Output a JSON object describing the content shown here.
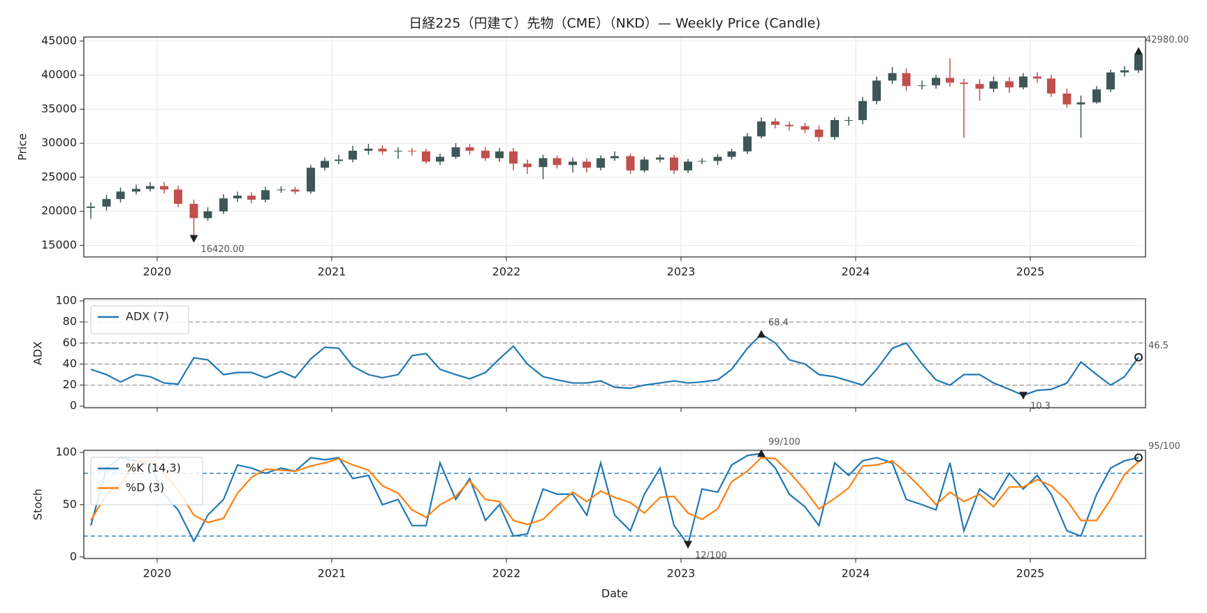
{
  "chart_data": [
    {
      "type": "candlestick",
      "title": "日経225（円建て）先物（CME）（NKD）— Weekly Price (Candle)",
      "ylabel": "Price",
      "x": [
        2019.62,
        2019.71,
        2019.79,
        2019.88,
        2019.96,
        2020.04,
        2020.12,
        2020.21,
        2020.29,
        2020.38,
        2020.46,
        2020.54,
        2020.62,
        2020.71,
        2020.79,
        2020.88,
        2020.96,
        2021.04,
        2021.12,
        2021.21,
        2021.29,
        2021.38,
        2021.46,
        2021.54,
        2021.62,
        2021.71,
        2021.79,
        2021.88,
        2021.96,
        2022.04,
        2022.12,
        2022.21,
        2022.29,
        2022.38,
        2022.46,
        2022.54,
        2022.62,
        2022.71,
        2022.79,
        2022.88,
        2022.96,
        2023.04,
        2023.12,
        2023.21,
        2023.29,
        2023.38,
        2023.46,
        2023.54,
        2023.62,
        2023.71,
        2023.79,
        2023.88,
        2023.96,
        2024.04,
        2024.12,
        2024.21,
        2024.29,
        2024.38,
        2024.46,
        2024.54,
        2024.62,
        2024.71,
        2024.79,
        2024.88,
        2024.96,
        2025.04,
        2025.12,
        2025.21,
        2025.29,
        2025.38,
        2025.46,
        2025.54,
        2025.62
      ],
      "open": [
        20500,
        20700,
        21800,
        22900,
        23300,
        23700,
        23200,
        21100,
        19000,
        20000,
        21900,
        22300,
        21700,
        23100,
        23200,
        22900,
        26400,
        27400,
        27600,
        28900,
        29200,
        28800,
        28900,
        28800,
        27300,
        28000,
        29400,
        28900,
        27800,
        28800,
        27000,
        26500,
        27800,
        26800,
        27300,
        26400,
        27800,
        28100,
        26000,
        27600,
        27900,
        26000,
        27300,
        27400,
        28000,
        28800,
        31000,
        33200,
        32700,
        32500,
        32000,
        30900,
        33400,
        33400,
        36200,
        39200,
        40300,
        38400,
        38500,
        39600,
        38900,
        38700,
        38000,
        39100,
        38200,
        39800,
        39500,
        37300,
        35700,
        36000,
        37900,
        40400,
        40700
      ],
      "high": [
        21300,
        22400,
        23500,
        23900,
        24300,
        24300,
        23800,
        21700,
        20600,
        22500,
        22900,
        22800,
        23600,
        23700,
        23600,
        26800,
        27900,
        28300,
        29600,
        29900,
        29700,
        29400,
        29300,
        29200,
        28500,
        30000,
        29900,
        29400,
        29300,
        29300,
        27600,
        28300,
        28200,
        27900,
        27800,
        28200,
        28800,
        28500,
        28000,
        28300,
        28300,
        27700,
        27800,
        28400,
        29200,
        31500,
        33800,
        33700,
        33200,
        33000,
        32600,
        33800,
        33900,
        36800,
        39800,
        41200,
        41000,
        39200,
        40100,
        42500,
        39500,
        39400,
        39800,
        39700,
        40300,
        40400,
        40000,
        38000,
        37000,
        38400,
        40800,
        41300,
        43500
      ],
      "low": [
        18900,
        20100,
        21300,
        22500,
        22900,
        22600,
        20600,
        16420,
        18600,
        19600,
        21400,
        21200,
        21300,
        22700,
        22500,
        22600,
        26000,
        26900,
        27200,
        28300,
        28300,
        27700,
        28200,
        27000,
        26800,
        27700,
        28300,
        27400,
        27300,
        26000,
        25500,
        24700,
        26300,
        25700,
        25700,
        26000,
        27400,
        25500,
        25700,
        27200,
        25500,
        25600,
        26900,
        26800,
        27600,
        28400,
        30700,
        32200,
        31900,
        31500,
        30300,
        30500,
        32600,
        32800,
        35700,
        38700,
        37700,
        37900,
        38000,
        38300,
        30800,
        36200,
        37500,
        37400,
        37900,
        38900,
        36800,
        35200,
        30800,
        35800,
        37500,
        39800,
        40300
      ],
      "close": [
        20700,
        21800,
        22900,
        23300,
        23700,
        23200,
        21100,
        19000,
        20000,
        21900,
        22300,
        21700,
        23100,
        23200,
        22900,
        26400,
        27400,
        27600,
        28900,
        29200,
        28800,
        28900,
        28800,
        27300,
        28000,
        29400,
        28900,
        27800,
        28800,
        27000,
        26500,
        27800,
        26800,
        27300,
        26400,
        27800,
        28100,
        26000,
        27600,
        27900,
        26000,
        27300,
        27400,
        28000,
        28800,
        31000,
        33200,
        32700,
        32500,
        32000,
        30900,
        33400,
        33400,
        36200,
        39200,
        40300,
        38400,
        38500,
        39600,
        38900,
        38700,
        38000,
        39100,
        38200,
        39800,
        39500,
        37300,
        35700,
        36000,
        37900,
        40400,
        40700,
        42980
      ],
      "up_color": "#3e5656",
      "down_color": "#c0504d",
      "xlim": [
        2019.58,
        2025.66
      ],
      "xticks": [
        2020,
        2021,
        2022,
        2023,
        2024,
        2025
      ],
      "ylim": [
        13300,
        45600
      ],
      "yticks": [
        15000,
        20000,
        25000,
        30000,
        35000,
        40000,
        45000
      ],
      "grid": true,
      "annotations": [
        {
          "value": 16420,
          "label": "16420.00"
        },
        {
          "value": 42980,
          "label": "42980.00"
        }
      ]
    },
    {
      "type": "line",
      "ylabel": "ADX",
      "legend": "upper left",
      "series": [
        {
          "name": "ADX (7)",
          "color": "#1f77b4",
          "values": [
            35,
            30,
            23,
            30,
            28,
            22,
            21,
            46,
            44,
            30,
            32,
            32,
            27,
            33,
            27,
            45,
            56,
            55,
            38,
            30,
            27,
            30,
            48,
            50,
            35,
            30,
            26,
            32,
            45,
            57,
            40,
            28,
            25,
            22,
            22,
            24,
            18,
            17,
            20,
            22,
            24,
            22,
            23,
            25,
            35,
            55,
            68.4,
            60,
            44,
            40,
            30,
            28,
            24,
            20,
            35,
            55,
            60,
            40,
            25,
            20,
            30,
            30,
            22,
            16,
            10.3,
            15,
            16,
            22,
            42,
            30,
            20,
            28,
            46.5
          ]
        }
      ],
      "ylim": [
        -1.5,
        102
      ],
      "yticks": [
        0,
        20,
        40,
        60,
        80,
        100
      ],
      "hlines": [
        20,
        40,
        60,
        80
      ],
      "hline_color": "#999999",
      "annotations": [
        {
          "value": 68.4,
          "label": "68.4"
        },
        {
          "value": 10.3,
          "label": "10.3"
        },
        {
          "value": 46.5,
          "label": "46.5"
        }
      ]
    },
    {
      "type": "line",
      "ylabel": "Stoch",
      "xlabel": "Date",
      "legend": "upper left",
      "series": [
        {
          "name": "%K (14,3)",
          "color": "#1f77b4",
          "values": [
            30,
            85,
            95,
            92,
            88,
            60,
            45,
            15,
            40,
            55,
            88,
            85,
            80,
            85,
            82,
            95,
            93,
            95,
            75,
            78,
            50,
            55,
            30,
            30,
            90,
            55,
            75,
            35,
            50,
            20,
            22,
            65,
            60,
            60,
            40,
            90,
            40,
            25,
            60,
            85,
            30,
            12,
            65,
            62,
            88,
            97,
            99,
            85,
            60,
            48,
            30,
            90,
            78,
            92,
            95,
            90,
            55,
            50,
            45,
            90,
            25,
            65,
            55,
            80,
            65,
            78,
            60,
            25,
            20,
            60,
            85,
            92,
            95
          ]
        },
        {
          "name": "%D (3)",
          "color": "#ff7f0e",
          "values": [
            35,
            60,
            70,
            91,
            92,
            80,
            64,
            40,
            33,
            37,
            61,
            76,
            84,
            83,
            82,
            87,
            90,
            94,
            88,
            83,
            68,
            61,
            45,
            38,
            50,
            58,
            73,
            55,
            53,
            35,
            31,
            36,
            49,
            62,
            53,
            63,
            57,
            52,
            42,
            57,
            58,
            42,
            36,
            46,
            72,
            82,
            95,
            94,
            81,
            64,
            46,
            56,
            66,
            87,
            88,
            92,
            80,
            65,
            50,
            62,
            53,
            60,
            48,
            67,
            67,
            74,
            68,
            54,
            35,
            35,
            55,
            79,
            91
          ]
        }
      ],
      "xticks": [
        2020,
        2021,
        2022,
        2023,
        2024,
        2025
      ],
      "ylim": [
        -1.5,
        102
      ],
      "yticks": [
        0,
        50,
        100
      ],
      "hlines": [
        20,
        80
      ],
      "hline_color": "#1f77b4",
      "annotations": [
        {
          "value": 99,
          "label": "99/100"
        },
        {
          "value": 12,
          "label": "12/100"
        },
        {
          "value": 95,
          "label": "95/100"
        }
      ]
    }
  ]
}
